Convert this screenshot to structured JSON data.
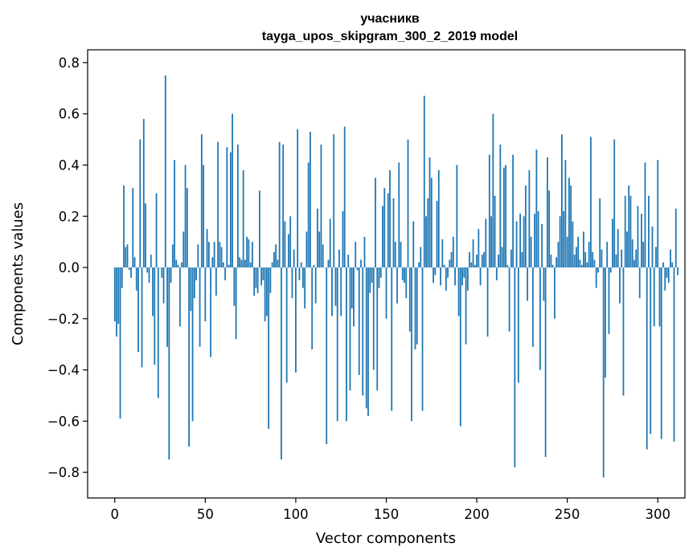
{
  "chart_data": {
    "type": "bar",
    "title": "учасникв",
    "subtitle": "tayga_upos_skipgram_300_2_2019 model",
    "xlabel": "Vector components",
    "ylabel": "Components values",
    "xlim": [
      -15,
      315
    ],
    "ylim": [
      -0.9,
      0.85
    ],
    "xticks": [
      0,
      50,
      100,
      150,
      200,
      250,
      300
    ],
    "yticks": [
      -0.8,
      -0.6,
      -0.4,
      -0.2,
      0.0,
      0.2,
      0.4,
      0.6,
      0.8
    ],
    "ytick_labels": [
      "−0.8",
      "−0.6",
      "−0.4",
      "−0.2",
      "0.0",
      "0.2",
      "0.4",
      "0.6",
      "0.8"
    ],
    "bar_color": "#1f77b4",
    "grid": false,
    "values": [
      -0.21,
      -0.27,
      -0.22,
      -0.59,
      -0.08,
      0.32,
      0.08,
      0.09,
      -0.01,
      -0.04,
      0.31,
      0.04,
      -0.09,
      -0.33,
      0.5,
      -0.39,
      0.58,
      0.25,
      -0.02,
      -0.06,
      0.05,
      -0.19,
      -0.38,
      0.29,
      -0.51,
      0.0,
      -0.04,
      -0.14,
      0.75,
      -0.31,
      -0.75,
      -0.06,
      0.09,
      0.42,
      0.03,
      0.01,
      -0.23,
      0.02,
      0.14,
      0.4,
      0.31,
      -0.7,
      -0.17,
      -0.6,
      -0.12,
      -0.05,
      0.09,
      -0.31,
      0.52,
      0.4,
      -0.21,
      0.15,
      0.1,
      -0.35,
      0.04,
      0.1,
      -0.11,
      0.49,
      0.1,
      0.08,
      0.02,
      -0.05,
      0.47,
      0.01,
      0.45,
      0.6,
      -0.15,
      -0.28,
      0.48,
      0.04,
      0.03,
      0.38,
      0.03,
      0.12,
      0.11,
      0.02,
      0.1,
      -0.11,
      -0.08,
      -0.1,
      0.3,
      -0.07,
      -0.05,
      -0.21,
      -0.19,
      -0.63,
      -0.1,
      0.02,
      0.06,
      0.09,
      0.03,
      0.49,
      -0.75,
      0.48,
      0.18,
      -0.45,
      0.13,
      0.2,
      -0.12,
      0.07,
      -0.41,
      0.54,
      -0.05,
      0.02,
      -0.08,
      -0.16,
      0.14,
      0.41,
      0.53,
      -0.32,
      0.01,
      -0.14,
      0.23,
      0.14,
      0.48,
      0.09,
      0.0,
      -0.69,
      0.03,
      0.19,
      -0.19,
      0.52,
      -0.15,
      -0.6,
      0.07,
      -0.19,
      0.22,
      0.55,
      -0.6,
      0.05,
      -0.48,
      -0.16,
      -0.23,
      0.1,
      -0.01,
      -0.42,
      0.03,
      -0.5,
      0.12,
      -0.55,
      -0.58,
      -0.1,
      -0.06,
      -0.4,
      0.35,
      -0.48,
      -0.08,
      -0.04,
      0.24,
      0.31,
      -0.2,
      0.29,
      0.38,
      -0.56,
      0.27,
      0.1,
      -0.14,
      0.41,
      0.1,
      -0.05,
      -0.06,
      -0.12,
      0.5,
      -0.25,
      -0.6,
      0.18,
      -0.32,
      -0.3,
      0.02,
      0.08,
      -0.56,
      0.67,
      0.2,
      0.27,
      0.43,
      0.35,
      -0.06,
      -0.03,
      0.26,
      0.38,
      -0.07,
      0.11,
      0.01,
      -0.09,
      -0.04,
      0.03,
      0.06,
      0.12,
      -0.07,
      0.4,
      -0.19,
      -0.62,
      -0.07,
      -0.04,
      -0.3,
      -0.09,
      0.06,
      0.02,
      0.11,
      0.01,
      0.05,
      0.15,
      -0.07,
      0.05,
      0.06,
      0.19,
      -0.27,
      0.44,
      0.2,
      0.6,
      0.28,
      -0.05,
      0.05,
      0.48,
      0.08,
      0.39,
      0.4,
      0.01,
      -0.25,
      0.07,
      0.44,
      -0.78,
      0.18,
      -0.45,
      0.21,
      0.06,
      0.2,
      0.32,
      -0.13,
      0.38,
      0.12,
      -0.31,
      0.21,
      0.46,
      0.22,
      -0.4,
      0.17,
      -0.13,
      -0.74,
      0.43,
      0.3,
      0.05,
      0.01,
      -0.2,
      0.04,
      0.1,
      0.2,
      0.52,
      0.22,
      0.42,
      0.12,
      0.35,
      0.32,
      0.18,
      0.05,
      0.08,
      0.12,
      0.03,
      0.01,
      0.14,
      0.06,
      0.02,
      0.1,
      0.51,
      0.06,
      0.03,
      -0.08,
      -0.02,
      0.27,
      0.07,
      -0.82,
      -0.43,
      0.1,
      -0.26,
      -0.02,
      0.19,
      0.5,
      0.05,
      0.15,
      -0.14,
      0.07,
      -0.5,
      0.28,
      0.14,
      0.32,
      0.28,
      0.11,
      0.03,
      0.07,
      0.24,
      -0.12,
      0.21,
      0.1,
      0.41,
      -0.71,
      0.28,
      -0.65,
      0.16,
      -0.23,
      0.08,
      0.42,
      -0.23,
      -0.67,
      0.02,
      -0.09,
      -0.04,
      -0.06,
      0.07,
      0.02,
      -0.68,
      0.23,
      -0.03
    ]
  }
}
